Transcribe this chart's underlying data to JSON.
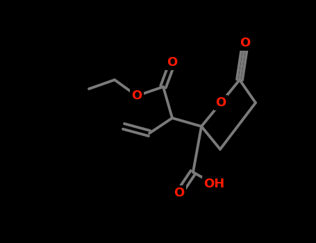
{
  "bg": "#000000",
  "bc": "#7a7a7a",
  "ac": "#ff1a00",
  "lw": 2.8,
  "doff": 4.0,
  "fs": 13,
  "fig_w": 4.55,
  "fig_h": 3.5,
  "dpi": 100,
  "xlim": [
    0,
    455
  ],
  "ylim": [
    350,
    0
  ]
}
